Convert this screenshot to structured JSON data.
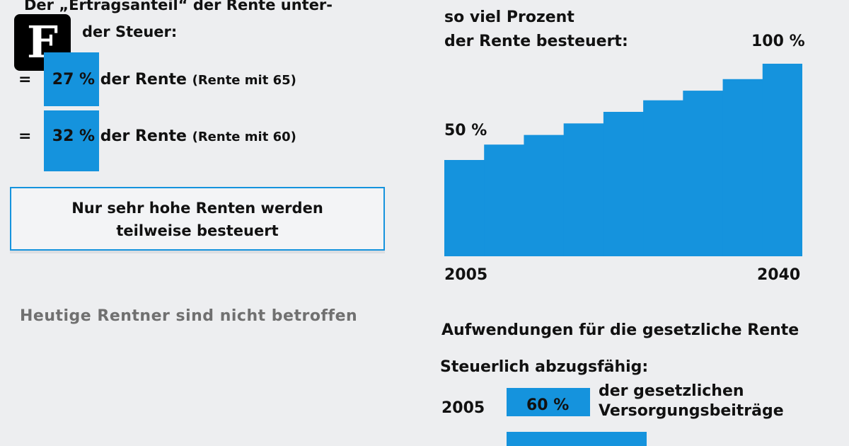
{
  "logo": {
    "letter": "F"
  },
  "left": {
    "heading_line1": "Der „Ertragsanteil“ der Rente unter-",
    "heading_line2": "der Steuer:",
    "rows": [
      {
        "eq": "=",
        "pct": "27 %",
        "text": "der Rente",
        "detail": "(Rente mit 65)"
      },
      {
        "eq": "=",
        "pct": "32 %",
        "text": "der Rente",
        "detail": "(Rente mit 60)"
      }
    ],
    "box_line1": "Nur sehr hohe Renten werden",
    "box_line2": "teilweise besteuert",
    "note": "Heutige Rentner sind nicht betroffen"
  },
  "right": {
    "heading_line2": "so viel Prozent",
    "heading_line3": "der Rente besteuert:",
    "aufwendungen": "Aufwendungen für die gesetzliche Rente",
    "abzug": "Steuerlich abzugsfähig:",
    "year_row": {
      "year": "2005",
      "pct": "60 %",
      "line1": "der gesetzlichen",
      "line2": "Versorgungsbeiträge"
    }
  },
  "chart_data": {
    "type": "area",
    "x_start": 2005,
    "x_end": 2040,
    "start_label": "50 %",
    "end_label": "100 %",
    "xtick_labels": [
      "2005",
      "2040"
    ],
    "values": [
      50,
      58,
      63,
      69,
      75,
      81,
      86,
      92,
      100
    ],
    "ylim": [
      0,
      100
    ],
    "grid": false,
    "color": "#1593dd"
  }
}
